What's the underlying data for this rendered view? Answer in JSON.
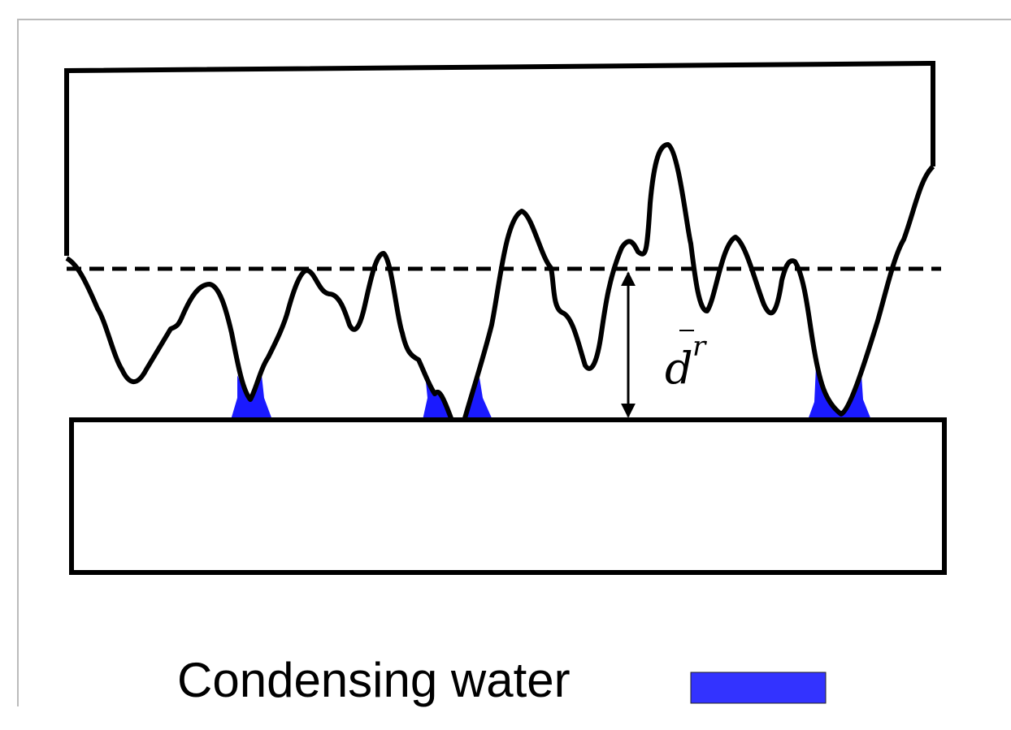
{
  "labels": {
    "gap": {
      "base": "d",
      "superscript": "r"
    }
  },
  "legend": {
    "label": "Condensing water"
  }
}
